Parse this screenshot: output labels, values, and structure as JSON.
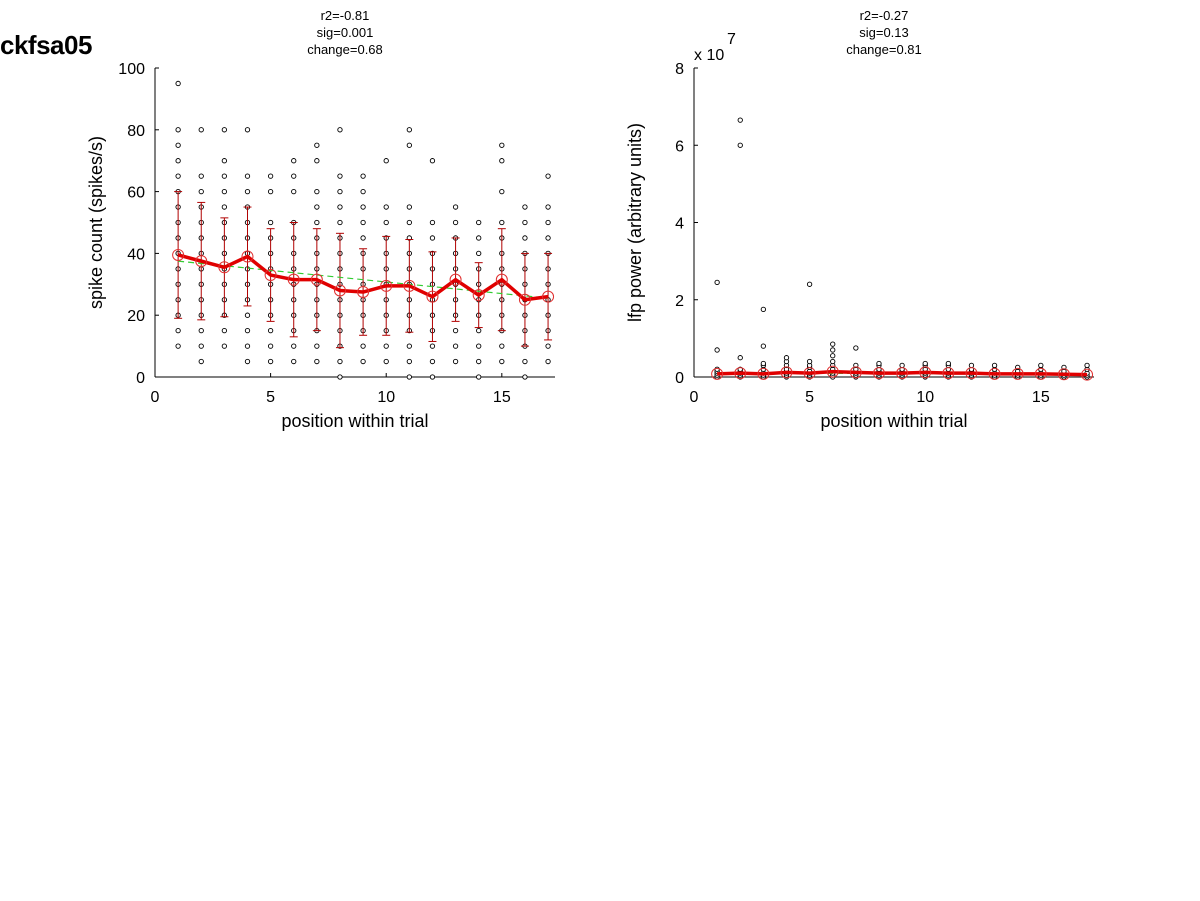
{
  "page_title": "ckfsa05",
  "chart_data": [
    {
      "type": "scatter",
      "name": "spike-count-panel",
      "xlabel": "position within trial",
      "ylabel": "spike count (spikes/s)",
      "xlim": [
        0,
        17.3
      ],
      "ylim": [
        0,
        100
      ],
      "xticks": [
        0,
        5,
        10,
        15
      ],
      "yticks": [
        0,
        20,
        40,
        60,
        80,
        100
      ],
      "multiplier": "",
      "annotations": [
        "r2=-0.81",
        "sig=0.001",
        "change=0.68"
      ],
      "points": [
        {
          "x": 1,
          "ys": [
            10,
            15,
            20,
            25,
            30,
            35,
            40,
            45,
            50,
            55,
            60,
            65,
            70,
            75,
            80,
            95
          ]
        },
        {
          "x": 2,
          "ys": [
            5,
            10,
            15,
            20,
            25,
            30,
            35,
            40,
            45,
            50,
            55,
            60,
            65,
            80
          ]
        },
        {
          "x": 3,
          "ys": [
            10,
            15,
            20,
            25,
            30,
            35,
            40,
            45,
            50,
            55,
            60,
            65,
            70,
            80
          ]
        },
        {
          "x": 4,
          "ys": [
            5,
            10,
            15,
            20,
            25,
            30,
            35,
            40,
            45,
            50,
            55,
            60,
            65,
            80
          ]
        },
        {
          "x": 5,
          "ys": [
            5,
            10,
            15,
            20,
            25,
            30,
            35,
            40,
            45,
            50,
            60,
            65
          ]
        },
        {
          "x": 6,
          "ys": [
            5,
            10,
            15,
            20,
            25,
            30,
            35,
            40,
            45,
            50,
            60,
            65,
            70
          ]
        },
        {
          "x": 7,
          "ys": [
            5,
            10,
            15,
            20,
            25,
            30,
            35,
            40,
            45,
            50,
            55,
            60,
            70,
            75
          ]
        },
        {
          "x": 8,
          "ys": [
            0,
            5,
            10,
            15,
            20,
            25,
            30,
            35,
            40,
            45,
            50,
            55,
            60,
            65,
            80
          ]
        },
        {
          "x": 9,
          "ys": [
            5,
            10,
            15,
            20,
            25,
            30,
            35,
            40,
            45,
            50,
            55,
            60,
            65
          ]
        },
        {
          "x": 10,
          "ys": [
            5,
            10,
            15,
            20,
            25,
            30,
            35,
            40,
            45,
            50,
            55,
            70
          ]
        },
        {
          "x": 11,
          "ys": [
            0,
            5,
            10,
            15,
            20,
            25,
            30,
            35,
            40,
            45,
            50,
            55,
            75,
            80
          ]
        },
        {
          "x": 12,
          "ys": [
            0,
            5,
            10,
            15,
            20,
            25,
            30,
            35,
            40,
            45,
            50,
            70
          ]
        },
        {
          "x": 13,
          "ys": [
            5,
            10,
            15,
            20,
            25,
            30,
            35,
            40,
            45,
            50,
            55
          ]
        },
        {
          "x": 14,
          "ys": [
            0,
            5,
            10,
            15,
            20,
            25,
            30,
            35,
            40,
            45,
            50
          ]
        },
        {
          "x": 15,
          "ys": [
            5,
            10,
            15,
            20,
            25,
            30,
            35,
            40,
            45,
            50,
            60,
            70,
            75
          ]
        },
        {
          "x": 16,
          "ys": [
            0,
            5,
            10,
            15,
            20,
            25,
            30,
            35,
            40,
            45,
            50,
            55
          ]
        },
        {
          "x": 17,
          "ys": [
            5,
            10,
            15,
            20,
            25,
            30,
            35,
            40,
            45,
            50,
            55,
            65
          ]
        }
      ],
      "mean": {
        "x": [
          1,
          2,
          3,
          4,
          5,
          6,
          7,
          8,
          9,
          10,
          11,
          12,
          13,
          14,
          15,
          16,
          17
        ],
        "y": [
          39.5,
          37.5,
          35.5,
          39,
          33,
          31.5,
          31.5,
          28,
          27.5,
          29.5,
          29.5,
          26,
          31.5,
          26.5,
          31.5,
          25,
          26
        ]
      },
      "sd": [
        20.5,
        19,
        16,
        16,
        15,
        18.5,
        16.5,
        18.5,
        14,
        16,
        15,
        14.5,
        13.5,
        10.5,
        16.5,
        15,
        14
      ],
      "fit": {
        "x0": 1,
        "y0": 37.5,
        "x1": 17,
        "y1": 25.5
      }
    },
    {
      "type": "scatter",
      "name": "lfp-power-panel",
      "xlabel": "position within trial",
      "ylabel": "lfp power (arbitrary units)",
      "xlim": [
        0,
        17.3
      ],
      "ylim": [
        0,
        8
      ],
      "xticks": [
        0,
        5,
        10,
        15
      ],
      "yticks": [
        0,
        2,
        4,
        6,
        8
      ],
      "multiplier": "x 10",
      "multiplier_exp": "7",
      "annotations": [
        "r2=-0.27",
        "sig=0.13",
        "change=0.81"
      ],
      "points": [
        {
          "x": 1,
          "ys": [
            0,
            0.05,
            0.1,
            0.15,
            0.2,
            0.7,
            2.45
          ]
        },
        {
          "x": 2,
          "ys": [
            0,
            0.05,
            0.1,
            0.15,
            0.2,
            0.5,
            6.0,
            6.65
          ]
        },
        {
          "x": 3,
          "ys": [
            0,
            0.05,
            0.1,
            0.2,
            0.3,
            0.35,
            0.8,
            1.75
          ]
        },
        {
          "x": 4,
          "ys": [
            0,
            0.05,
            0.1,
            0.15,
            0.2,
            0.3,
            0.4,
            0.5
          ]
        },
        {
          "x": 5,
          "ys": [
            0,
            0.05,
            0.1,
            0.15,
            0.25,
            0.3,
            0.4,
            2.4
          ]
        },
        {
          "x": 6,
          "ys": [
            0,
            0.05,
            0.1,
            0.2,
            0.3,
            0.4,
            0.55,
            0.7,
            0.85
          ]
        },
        {
          "x": 7,
          "ys": [
            0,
            0.05,
            0.1,
            0.2,
            0.3,
            0.75
          ]
        },
        {
          "x": 8,
          "ys": [
            0,
            0.05,
            0.1,
            0.15,
            0.2,
            0.3,
            0.35
          ]
        },
        {
          "x": 9,
          "ys": [
            0,
            0.05,
            0.1,
            0.15,
            0.2,
            0.3
          ]
        },
        {
          "x": 10,
          "ys": [
            0,
            0.05,
            0.1,
            0.2,
            0.3,
            0.35
          ]
        },
        {
          "x": 11,
          "ys": [
            0,
            0.05,
            0.1,
            0.2,
            0.3,
            0.35
          ]
        },
        {
          "x": 12,
          "ys": [
            0,
            0.05,
            0.1,
            0.15,
            0.2,
            0.3
          ]
        },
        {
          "x": 13,
          "ys": [
            0,
            0.05,
            0.1,
            0.2,
            0.3
          ]
        },
        {
          "x": 14,
          "ys": [
            0,
            0.05,
            0.1,
            0.15,
            0.25
          ]
        },
        {
          "x": 15,
          "ys": [
            0,
            0.05,
            0.1,
            0.2,
            0.3
          ]
        },
        {
          "x": 16,
          "ys": [
            0,
            0.05,
            0.1,
            0.15,
            0.25
          ]
        },
        {
          "x": 17,
          "ys": [
            0,
            0.05,
            0.1,
            0.2,
            0.3
          ]
        }
      ],
      "mean": {
        "x": [
          1,
          2,
          3,
          4,
          5,
          6,
          7,
          8,
          9,
          10,
          11,
          12,
          13,
          14,
          15,
          16,
          17
        ],
        "y": [
          0.08,
          0.1,
          0.08,
          0.12,
          0.1,
          0.14,
          0.12,
          0.1,
          0.1,
          0.12,
          0.1,
          0.1,
          0.08,
          0.08,
          0.08,
          0.07,
          0.06
        ]
      },
      "sd": [
        0,
        0,
        0,
        0,
        0,
        0,
        0,
        0,
        0,
        0,
        0,
        0,
        0,
        0,
        0,
        0,
        0
      ],
      "fit": {
        "x0": 1,
        "y0": 0.1,
        "x1": 17,
        "y1": 0.08
      }
    }
  ],
  "colors": {
    "mean_line": "#e00000",
    "error_bar": "#b00000",
    "fit_line": "#33cc33",
    "points": "#000000",
    "mean_marker": "#e03030"
  }
}
